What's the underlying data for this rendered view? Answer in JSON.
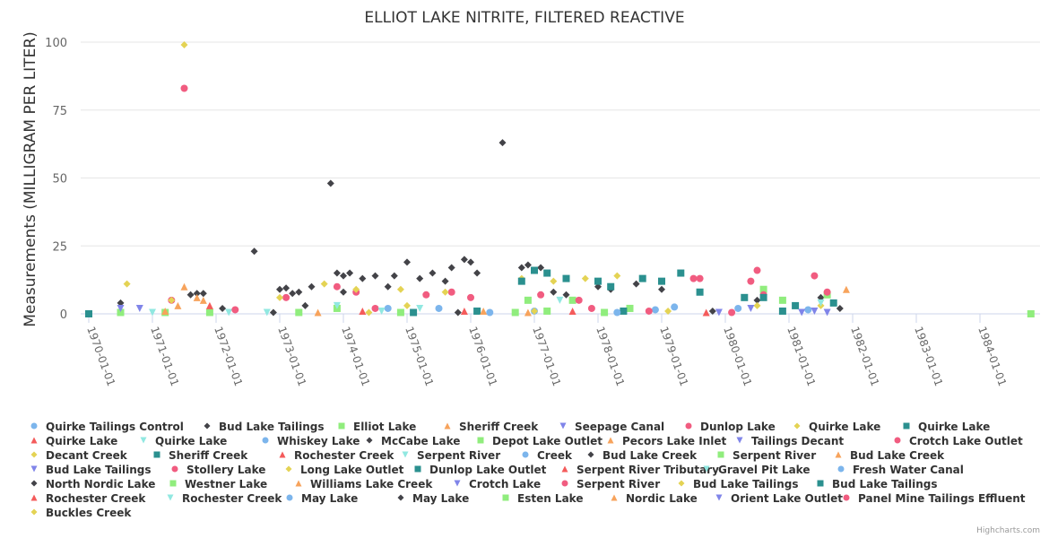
{
  "chart_data": {
    "type": "scatter",
    "title": "ELLIOT LAKE NITRITE, FILTERED REACTIVE",
    "xlabel": "",
    "ylabel": "Measurements (MILLIGRAM PER LITER)",
    "ylim": [
      0,
      100
    ],
    "yticks": [
      "0",
      "25",
      "50",
      "75",
      "100"
    ],
    "ytick_values": [
      0,
      25,
      50,
      75,
      100
    ],
    "xlim": [
      1969.9,
      1984.9
    ],
    "xticks": [
      "1970-01-01",
      "1971-01-01",
      "1972-01-01",
      "1973-01-01",
      "1974-01-01",
      "1975-01-01",
      "1976-01-01",
      "1977-01-01",
      "1978-01-01",
      "1979-01-01",
      "1980-01-01",
      "1981-01-01",
      "1982-01-01",
      "1983-01-01",
      "1984-01-01"
    ],
    "xtick_values": [
      1970,
      1971,
      1972,
      1973,
      1974,
      1975,
      1976,
      1977,
      1978,
      1979,
      1980,
      1981,
      1982,
      1983,
      1984
    ],
    "grid": true,
    "legend_position": "bottom",
    "credits": "Highcharts.com",
    "series": [
      {
        "name": "Quirke Tailings Control",
        "color": "#7cb5ec",
        "marker": "circle",
        "points": [
          [
            1977.0,
            1.0
          ],
          [
            1979.2,
            2.5
          ],
          [
            1980.2,
            2.0
          ],
          [
            1981.3,
            1.5
          ]
        ]
      },
      {
        "name": "Bud Lake Tailings",
        "color": "#434348",
        "marker": "diamond",
        "points": [
          [
            1970.5,
            4.0
          ],
          [
            1971.6,
            7.0
          ],
          [
            1971.7,
            7.5
          ],
          [
            1971.8,
            7.5
          ],
          [
            1972.6,
            23.0
          ],
          [
            1973.0,
            9.0
          ],
          [
            1973.1,
            9.5
          ],
          [
            1973.2,
            7.5
          ],
          [
            1973.3,
            8.0
          ],
          [
            1973.5,
            10.0
          ],
          [
            1973.8,
            48.0
          ],
          [
            1973.9,
            15.0
          ],
          [
            1974.0,
            14.0
          ],
          [
            1974.1,
            15.0
          ],
          [
            1974.3,
            13.0
          ],
          [
            1974.5,
            14.0
          ],
          [
            1974.7,
            10.0
          ],
          [
            1974.8,
            14.0
          ],
          [
            1975.0,
            19.0
          ],
          [
            1975.2,
            13.0
          ],
          [
            1975.4,
            15.0
          ],
          [
            1975.6,
            12.0
          ],
          [
            1975.7,
            17.0
          ],
          [
            1975.9,
            20.0
          ],
          [
            1976.0,
            19.0
          ],
          [
            1976.1,
            15.0
          ],
          [
            1976.5,
            63.0
          ],
          [
            1976.8,
            17.0
          ],
          [
            1976.9,
            18.0
          ],
          [
            1977.1,
            17.0
          ],
          [
            1977.3,
            8.0
          ],
          [
            1977.5,
            7.0
          ],
          [
            1978.0,
            10.0
          ],
          [
            1978.2,
            9.0
          ],
          [
            1978.6,
            11.0
          ],
          [
            1979.0,
            9.0
          ],
          [
            1980.5,
            5.0
          ],
          [
            1981.5,
            6.0
          ],
          [
            1981.8,
            2.0
          ]
        ]
      },
      {
        "name": "Elliot Lake",
        "color": "#90ed7d",
        "marker": "square",
        "points": [
          [
            1970.5,
            0.5
          ],
          [
            1971.2,
            0.5
          ],
          [
            1971.9,
            0.5
          ],
          [
            1973.9,
            2.0
          ],
          [
            1976.9,
            5.0
          ],
          [
            1977.6,
            5.0
          ],
          [
            1978.5,
            2.0
          ],
          [
            1980.6,
            9.0
          ],
          [
            1980.9,
            5.0
          ],
          [
            1981.6,
            7.0
          ],
          [
            1984.8,
            0.0
          ]
        ]
      },
      {
        "name": "Sheriff Creek",
        "color": "#f7a35c",
        "marker": "triangle",
        "points": [
          [
            1971.5,
            10.0
          ],
          [
            1971.4,
            3.0
          ],
          [
            1971.7,
            6.0
          ],
          [
            1971.8,
            5.0
          ],
          [
            1981.9,
            9.0
          ]
        ]
      },
      {
        "name": "Seepage Canal",
        "color": "#8085e9",
        "marker": "triangle-down",
        "points": [
          [
            1970.5,
            2.0
          ],
          [
            1970.8,
            2.0
          ],
          [
            1981.4,
            1.0
          ]
        ]
      },
      {
        "name": "Dunlop Lake",
        "color": "#f15c80",
        "marker": "circle",
        "points": [
          [
            1971.5,
            83.0
          ],
          [
            1971.3,
            5.0
          ],
          [
            1973.1,
            6.0
          ],
          [
            1973.9,
            10.0
          ],
          [
            1974.2,
            8.0
          ],
          [
            1975.3,
            7.0
          ],
          [
            1975.7,
            8.0
          ],
          [
            1976.0,
            6.0
          ],
          [
            1977.1,
            7.0
          ],
          [
            1977.7,
            5.0
          ],
          [
            1979.5,
            13.0
          ],
          [
            1979.6,
            13.0
          ],
          [
            1980.4,
            12.0
          ],
          [
            1980.5,
            16.0
          ],
          [
            1980.6,
            7.0
          ],
          [
            1981.4,
            14.0
          ],
          [
            1981.6,
            8.0
          ]
        ]
      },
      {
        "name": "Quirke Lake",
        "color": "#e4d354",
        "marker": "diamond",
        "points": [
          [
            1971.5,
            99.0
          ],
          [
            1970.6,
            11.0
          ],
          [
            1971.3,
            5.0
          ],
          [
            1973.7,
            11.0
          ],
          [
            1974.2,
            9.0
          ],
          [
            1974.9,
            9.0
          ],
          [
            1975.6,
            8.0
          ],
          [
            1976.8,
            13.0
          ],
          [
            1977.3,
            12.0
          ],
          [
            1977.8,
            13.0
          ],
          [
            1978.3,
            14.0
          ],
          [
            1980.5,
            3.0
          ],
          [
            1981.5,
            3.0
          ]
        ]
      },
      {
        "name": "Quirke Lake",
        "color": "#2b908f",
        "marker": "square",
        "points": [
          [
            1970.0,
            0.0
          ],
          [
            1976.8,
            12.0
          ],
          [
            1977.0,
            16.0
          ],
          [
            1977.2,
            15.0
          ],
          [
            1977.5,
            13.0
          ],
          [
            1978.0,
            12.0
          ],
          [
            1978.2,
            10.0
          ],
          [
            1978.7,
            13.0
          ],
          [
            1979.0,
            12.0
          ],
          [
            1979.3,
            15.0
          ],
          [
            1979.6,
            8.0
          ],
          [
            1980.3,
            6.0
          ],
          [
            1980.6,
            6.0
          ],
          [
            1981.1,
            3.0
          ],
          [
            1981.7,
            4.0
          ]
        ]
      },
      {
        "name": "Quirke Lake",
        "color": "#f45b5b",
        "marker": "triangle",
        "points": [
          [
            1971.9,
            3.0
          ],
          [
            1975.9,
            1.0
          ]
        ]
      },
      {
        "name": "Quirke Lake",
        "color": "#91e8e1",
        "marker": "triangle-down",
        "points": [
          [
            1971.0,
            0.5
          ],
          [
            1972.2,
            0.5
          ],
          [
            1975.2,
            2.0
          ],
          [
            1977.4,
            5.0
          ],
          [
            1981.5,
            4.0
          ]
        ]
      },
      {
        "name": "Whiskey Lake",
        "color": "#7cb5ec",
        "marker": "circle",
        "points": [
          [
            1974.7,
            2.0
          ],
          [
            1978.9,
            1.5
          ]
        ]
      },
      {
        "name": "McCabe Lake",
        "color": "#434348",
        "marker": "diamond",
        "points": [
          [
            1972.1,
            2.0
          ],
          [
            1973.4,
            3.0
          ],
          [
            1974.0,
            8.0
          ]
        ]
      },
      {
        "name": "Depot Lake Outlet",
        "color": "#90ed7d",
        "marker": "square",
        "points": [
          [
            1976.7,
            0.5
          ],
          [
            1977.2,
            1.0
          ]
        ]
      },
      {
        "name": "Pecors Lake Inlet",
        "color": "#f7a35c",
        "marker": "triangle",
        "points": [
          [
            1971.2,
            1.0
          ]
        ]
      },
      {
        "name": "Tailings Decant",
        "color": "#8085e9",
        "marker": "triangle-down",
        "points": [
          [
            1980.4,
            2.0
          ]
        ]
      },
      {
        "name": "Crotch Lake Outlet",
        "color": "#f15c80",
        "marker": "circle",
        "points": [
          [
            1972.3,
            1.5
          ],
          [
            1974.5,
            2.0
          ]
        ]
      },
      {
        "name": "Decant Creek",
        "color": "#e4d354",
        "marker": "diamond",
        "points": [
          [
            1973.0,
            6.0
          ],
          [
            1975.0,
            3.0
          ]
        ]
      },
      {
        "name": "Sheriff Creek",
        "color": "#2b908f",
        "marker": "square",
        "points": [
          [
            1976.1,
            1.0
          ],
          [
            1978.4,
            1.0
          ]
        ]
      },
      {
        "name": "Rochester Creek",
        "color": "#f45b5b",
        "marker": "triangle",
        "points": [
          [
            1974.3,
            1.0
          ]
        ]
      },
      {
        "name": "Serpent River",
        "color": "#91e8e1",
        "marker": "triangle-down",
        "points": [
          [
            1973.9,
            3.0
          ]
        ]
      },
      {
        "name": "Creek",
        "color": "#7cb5ec",
        "marker": "circle",
        "points": [
          [
            1975.5,
            2.0
          ]
        ]
      },
      {
        "name": "Bud Lake Creek",
        "color": "#434348",
        "marker": "diamond",
        "points": [
          [
            1979.8,
            1.0
          ]
        ]
      },
      {
        "name": "Serpent River",
        "color": "#90ed7d",
        "marker": "square",
        "points": [
          [
            1978.1,
            0.5
          ]
        ]
      },
      {
        "name": "Bud Lake Creek",
        "color": "#f7a35c",
        "marker": "triangle",
        "points": [
          [
            1976.2,
            1.0
          ]
        ]
      },
      {
        "name": "Bud Lake Tailings",
        "color": "#8085e9",
        "marker": "triangle-down",
        "points": [
          [
            1981.6,
            0.5
          ]
        ]
      },
      {
        "name": "Stollery Lake",
        "color": "#f15c80",
        "marker": "circle",
        "points": [
          [
            1977.9,
            2.0
          ]
        ]
      },
      {
        "name": "Long Lake Outlet",
        "color": "#e4d354",
        "marker": "diamond",
        "points": [
          [
            1979.1,
            1.0
          ]
        ]
      },
      {
        "name": "Dunlop Lake Outlet",
        "color": "#2b908f",
        "marker": "square",
        "points": [
          [
            1980.9,
            1.0
          ]
        ]
      },
      {
        "name": "Serpent River Tributary",
        "color": "#f45b5b",
        "marker": "triangle",
        "points": [
          [
            1977.6,
            1.0
          ]
        ]
      },
      {
        "name": "Gravel Pit Lake",
        "color": "#91e8e1",
        "marker": "triangle-down",
        "points": [
          [
            1974.6,
            1.0
          ]
        ]
      },
      {
        "name": "Fresh Water Canal",
        "color": "#7cb5ec",
        "marker": "circle",
        "points": [
          [
            1976.3,
            0.5
          ]
        ]
      },
      {
        "name": "North Nordic Lake",
        "color": "#434348",
        "marker": "diamond",
        "points": [
          [
            1975.8,
            0.5
          ]
        ]
      },
      {
        "name": "Westner Lake",
        "color": "#90ed7d",
        "marker": "square",
        "points": [
          [
            1974.9,
            0.5
          ]
        ]
      },
      {
        "name": "Williams Lake Creek",
        "color": "#f7a35c",
        "marker": "triangle",
        "points": [
          [
            1973.6,
            0.5
          ]
        ]
      },
      {
        "name": "Crotch Lake",
        "color": "#8085e9",
        "marker": "triangle-down",
        "points": [
          [
            1981.2,
            0.5
          ]
        ]
      },
      {
        "name": "Serpent River",
        "color": "#f15c80",
        "marker": "circle",
        "points": [
          [
            1978.8,
            1.0
          ]
        ]
      },
      {
        "name": "Bud Lake Tailings",
        "color": "#e4d354",
        "marker": "diamond",
        "points": [
          [
            1977.0,
            1.0
          ]
        ]
      },
      {
        "name": "Bud Lake Tailings",
        "color": "#2b908f",
        "marker": "square",
        "points": [
          [
            1975.1,
            0.5
          ]
        ]
      },
      {
        "name": "Rochester Creek",
        "color": "#f45b5b",
        "marker": "triangle",
        "points": [
          [
            1979.7,
            0.5
          ]
        ]
      },
      {
        "name": "Rochester Creek",
        "color": "#91e8e1",
        "marker": "triangle-down",
        "points": [
          [
            1972.8,
            0.5
          ]
        ]
      },
      {
        "name": "May Lake",
        "color": "#7cb5ec",
        "marker": "circle",
        "points": [
          [
            1978.3,
            0.5
          ]
        ]
      },
      {
        "name": "May Lake",
        "color": "#434348",
        "marker": "diamond",
        "points": [
          [
            1972.9,
            0.5
          ]
        ]
      },
      {
        "name": "Esten Lake",
        "color": "#90ed7d",
        "marker": "square",
        "points": [
          [
            1973.3,
            0.5
          ]
        ]
      },
      {
        "name": "Nordic Lake",
        "color": "#f7a35c",
        "marker": "triangle",
        "points": [
          [
            1976.9,
            0.5
          ]
        ]
      },
      {
        "name": "Orient Lake Outlet",
        "color": "#8085e9",
        "marker": "triangle-down",
        "points": [
          [
            1979.9,
            0.5
          ]
        ]
      },
      {
        "name": "Panel Mine Tailings Effluent",
        "color": "#f15c80",
        "marker": "circle",
        "points": [
          [
            1980.1,
            0.5
          ]
        ]
      },
      {
        "name": "Buckles Creek",
        "color": "#e4d354",
        "marker": "diamond",
        "points": [
          [
            1974.4,
            0.5
          ]
        ]
      }
    ]
  }
}
